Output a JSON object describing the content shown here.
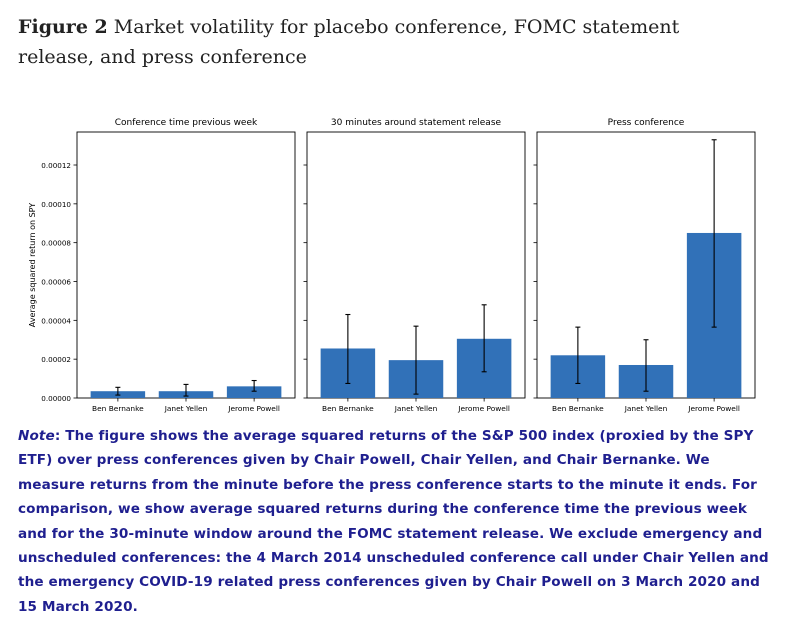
{
  "figure": {
    "label": "Figure 2",
    "title": "Market volatility for placebo conference, FOMC statement release, and press conference"
  },
  "note": {
    "label": "Note",
    "text": ": The figure shows the average squared returns of the S&P 500 index (proxied by the SPY ETF) over press conferences given by Chair Powell, Chair Yellen, and Chair Bernanke. We measure returns from the minute before the press conference starts to the minute it ends. For comparison, we show average squared returns during the conference time the previous week and for the 30-minute window around the FOMC statement release. We exclude emergency and unscheduled conferences: the 4 March 2014 unscheduled conference call under Chair Yellen and the emergency COVID-19 related press conferences given by Chair Powell on 3 March 2020 and 15 March 2020."
  },
  "colors": {
    "bar": "#3171b8",
    "errorbar": "#000000",
    "axis": "#000000"
  },
  "chart_data": {
    "type": "bar",
    "ylabel": "Average squared return on SPY",
    "ylim": [
      0,
      0.000137
    ],
    "yticks": [
      "0.00000",
      "0.00002",
      "0.00004",
      "0.00006",
      "0.00008",
      "0.00010",
      "0.00012"
    ],
    "ytick_values": [
      0,
      2e-05,
      4e-05,
      6e-05,
      8e-05,
      0.0001,
      0.00012
    ],
    "sharey": true,
    "panels": [
      {
        "title": "Conference time previous week",
        "categories": [
          "Ben Bernanke",
          "Janet Yellen",
          "Jerome Powell"
        ],
        "values": [
          3.5e-06,
          3.5e-06,
          6e-06
        ],
        "err_low": [
          1.5e-06,
          1e-06,
          3.5e-06
        ],
        "err_high": [
          5.5e-06,
          7e-06,
          9e-06
        ]
      },
      {
        "title": "30 minutes around statement release",
        "categories": [
          "Ben Bernanke",
          "Janet Yellen",
          "Jerome Powell"
        ],
        "values": [
          2.55e-05,
          1.95e-05,
          3.05e-05
        ],
        "err_low": [
          7.5e-06,
          2e-06,
          1.35e-05
        ],
        "err_high": [
          4.3e-05,
          3.7e-05,
          4.8e-05
        ]
      },
      {
        "title": "Press conference",
        "categories": [
          "Ben Bernanke",
          "Janet Yellen",
          "Jerome Powell"
        ],
        "values": [
          2.2e-05,
          1.7e-05,
          8.5e-05
        ],
        "err_low": [
          7.5e-06,
          3.5e-06,
          3.65e-05
        ],
        "err_high": [
          3.65e-05,
          3e-05,
          0.000133
        ]
      }
    ]
  }
}
